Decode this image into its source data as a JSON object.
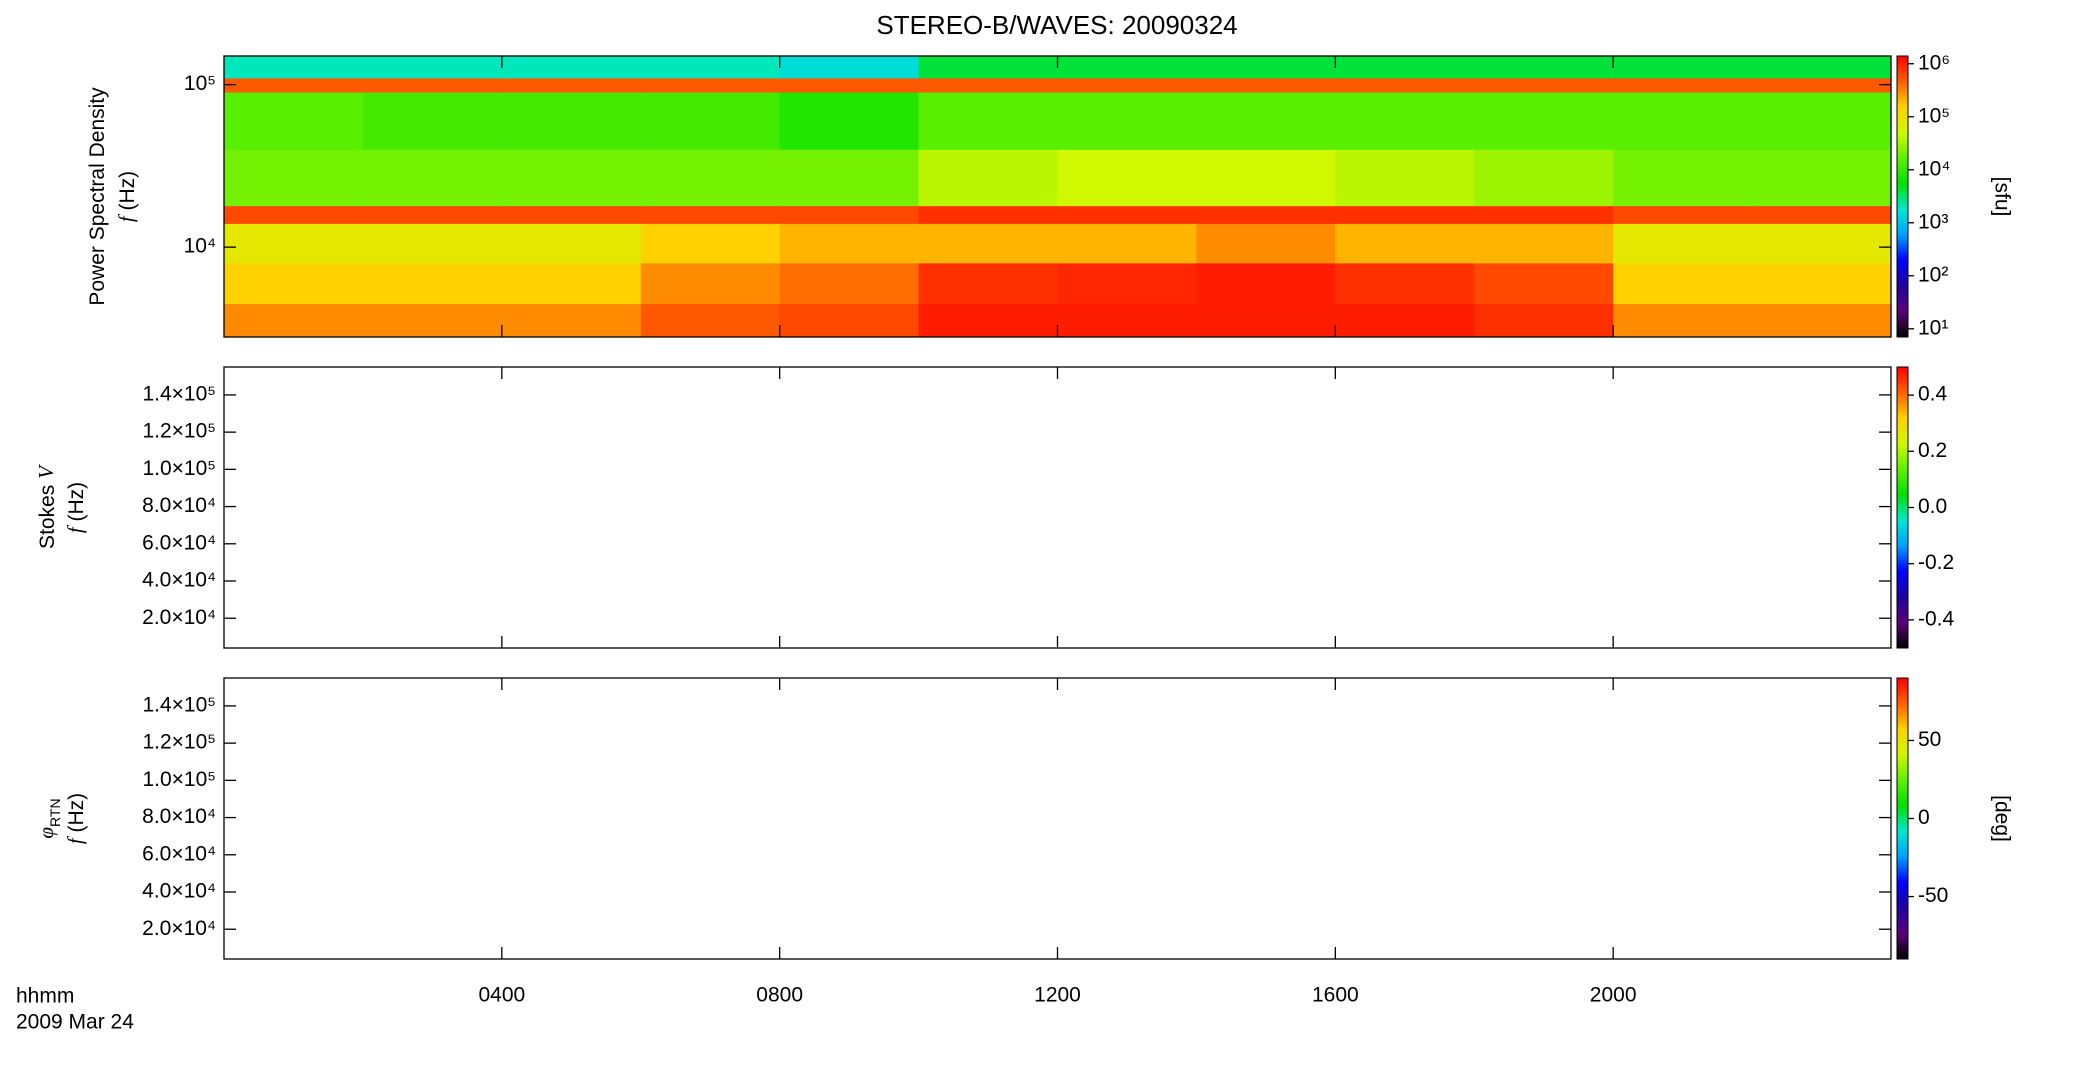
{
  "chart_data": [
    {
      "type": "heatmap",
      "title": "STEREO-B/WAVES: 20090324",
      "ylabel": [
        {
          "text": "Power Spectral Density"
        },
        {
          "text": "f",
          "rest": " (Hz)"
        }
      ],
      "log_y": true,
      "ylim": [
        2800,
        150000
      ],
      "yticks": [
        {
          "value": 10000,
          "label": "10⁴"
        },
        {
          "value": 100000,
          "label": "10⁵"
        }
      ],
      "x_bins": [
        0,
        2,
        4,
        6,
        8,
        10,
        12,
        14,
        16,
        18,
        20,
        22,
        24
      ],
      "y_bins": [
        2800,
        4500,
        8000,
        14000,
        18000,
        40000,
        90000,
        110000,
        150000
      ],
      "values": [
        [
          300000,
          300000,
          300000,
          500000,
          600000,
          1000000,
          1000000,
          1000000,
          1000000,
          800000,
          300000,
          300000
        ],
        [
          150000,
          150000,
          150000,
          300000,
          400000,
          800000,
          900000,
          1000000,
          800000,
          600000,
          150000,
          150000
        ],
        [
          80000,
          80000,
          80000,
          150000,
          200000,
          200000,
          200000,
          300000,
          200000,
          200000,
          80000,
          80000
        ],
        [
          600000,
          600000,
          600000,
          600000,
          600000,
          800000,
          800000,
          800000,
          800000,
          800000,
          600000,
          600000
        ],
        [
          20000,
          20000,
          20000,
          20000,
          20000,
          40000,
          50000,
          50000,
          40000,
          30000,
          20000,
          20000
        ],
        [
          15000,
          12000,
          12000,
          12000,
          8000,
          15000,
          15000,
          15000,
          15000,
          15000,
          15000,
          15000
        ],
        [
          500000,
          500000,
          500000,
          500000,
          500000,
          500000,
          500000,
          500000,
          500000,
          500000,
          500000,
          500000
        ],
        [
          2000,
          2000,
          2000,
          2000,
          1500,
          4000,
          4000,
          4000,
          4000,
          4000,
          4000,
          4000
        ]
      ],
      "colorbar": {
        "log": true,
        "lim": [
          7,
          1400000
        ],
        "label": "[sfu]",
        "ticks": [
          {
            "value": 10,
            "label": "10¹"
          },
          {
            "value": 100,
            "label": "10²"
          },
          {
            "value": 1000,
            "label": "10³"
          },
          {
            "value": 10000,
            "label": "10⁴"
          },
          {
            "value": 100000,
            "label": "10⁵"
          },
          {
            "value": 1000000,
            "label": "10⁶"
          }
        ]
      }
    },
    {
      "type": "heatmap",
      "ylabel": [
        {
          "text": "Stokes ",
          "it": "V"
        },
        {
          "text": "f",
          "rest": " (Hz)"
        }
      ],
      "log_y": false,
      "ylim": [
        4000,
        155000
      ],
      "yticks": [
        {
          "value": 20000,
          "label": "2.0×10⁴"
        },
        {
          "value": 40000,
          "label": "4.0×10⁴"
        },
        {
          "value": 60000,
          "label": "6.0×10⁴"
        },
        {
          "value": 80000,
          "label": "8.0×10⁴"
        },
        {
          "value": 100000,
          "label": "1.0×10⁵"
        },
        {
          "value": 120000,
          "label": "1.2×10⁵"
        },
        {
          "value": 140000,
          "label": "1.4×10⁵"
        }
      ],
      "colorbar": {
        "log": false,
        "lim": [
          -0.5,
          0.5
        ],
        "ticks": [
          -0.4,
          -0.2,
          {
            "value": 0,
            "label": "0.0"
          },
          0.2,
          0.4
        ]
      }
    },
    {
      "type": "heatmap",
      "ylabel": [
        {
          "text": "φ",
          "sub": "RTN"
        },
        {
          "text": "f",
          "rest": " (Hz)"
        }
      ],
      "log_y": false,
      "ylim": [
        4000,
        155000
      ],
      "yticks": [
        {
          "value": 20000,
          "label": "2.0×10⁴"
        },
        {
          "value": 40000,
          "label": "4.0×10⁴"
        },
        {
          "value": 60000,
          "label": "6.0×10⁴"
        },
        {
          "value": 80000,
          "label": "8.0×10⁴"
        },
        {
          "value": 100000,
          "label": "1.0×10⁵"
        },
        {
          "value": 120000,
          "label": "1.2×10⁵"
        },
        {
          "value": 140000,
          "label": "1.4×10⁵"
        }
      ],
      "colorbar": {
        "log": false,
        "lim": [
          -90,
          90
        ],
        "label": "[deg]",
        "ticks": [
          -50,
          0,
          50
        ]
      }
    }
  ],
  "x_axis": {
    "label": "hhmm",
    "date": "2009 Mar 24",
    "xlim": [
      0,
      24
    ],
    "xticks": [
      {
        "value": 4,
        "label": "0400"
      },
      {
        "value": 8,
        "label": "0800"
      },
      {
        "value": 12,
        "label": "1200"
      },
      {
        "value": 16,
        "label": "1600"
      },
      {
        "value": 20,
        "label": "2000"
      }
    ]
  },
  "colormap": [
    "#000000",
    "#5a0078",
    "#2000a0",
    "#0000ff",
    "#00a0ff",
    "#00e8d0",
    "#00e000",
    "#60f000",
    "#d0f800",
    "#ffd000",
    "#ff6000",
    "#ff0000"
  ]
}
